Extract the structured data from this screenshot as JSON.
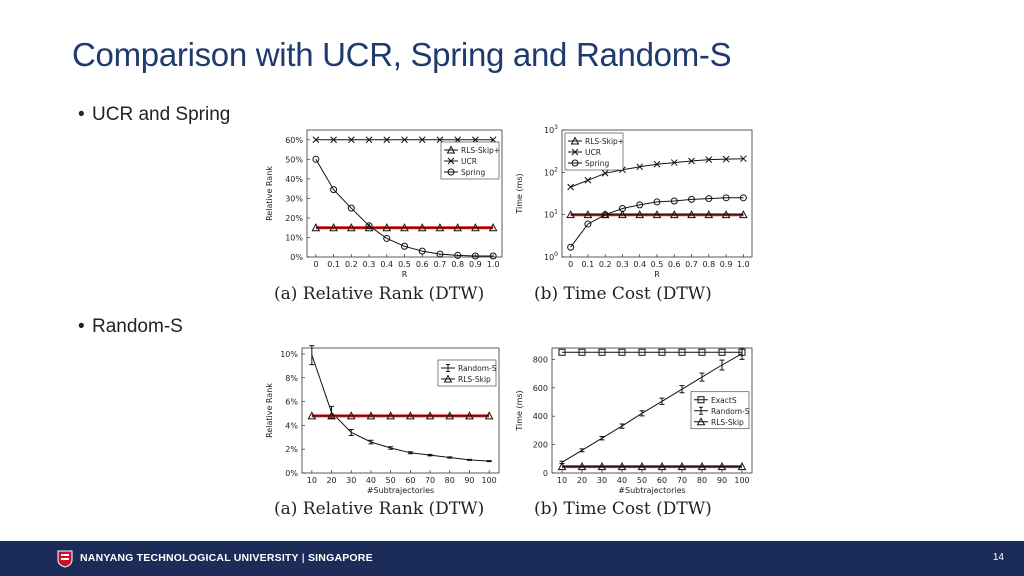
{
  "slide": {
    "title": "Comparison with UCR, Spring and Random-S",
    "bullets": [
      "UCR and Spring",
      "Random-S"
    ],
    "page_number": "14"
  },
  "footer": {
    "university": "NANYANG TECHNOLOGICAL UNIVERSITY",
    "separator": "|",
    "location": "SINGAPORE"
  },
  "colors": {
    "title": "#1f3a6e",
    "footer_bg": "#1c2c59",
    "highlight_line": "#e02020"
  },
  "chart_data": [
    {
      "type": "line",
      "caption": "(a) Relative Rank (DTW)",
      "xlabel": "R",
      "ylabel": "Relative Rank",
      "x": [
        0,
        0.1,
        0.2,
        0.3,
        0.4,
        0.5,
        0.6,
        0.7,
        0.8,
        0.9,
        1.0
      ],
      "xticks": [
        "0",
        "0.1",
        "0.2",
        "0.3",
        "0.4",
        "0.5",
        "0.6",
        "0.7",
        "0.8",
        "0.9",
        "1.0"
      ],
      "yticks": [
        "0%",
        "10%",
        "20%",
        "30%",
        "40%",
        "50%",
        "60%"
      ],
      "ylim": [
        0,
        65
      ],
      "xlim": [
        -0.05,
        1.05
      ],
      "legend_position": "top-right",
      "series": [
        {
          "name": "RLS-Skip+",
          "marker": "triangle",
          "highlight": true,
          "values": [
            15,
            15,
            15,
            15,
            15,
            15,
            15,
            15,
            15,
            15,
            15
          ]
        },
        {
          "name": "UCR",
          "marker": "x",
          "values": [
            60,
            60,
            60,
            60,
            60,
            60,
            60,
            60,
            60,
            60,
            60
          ]
        },
        {
          "name": "Spring",
          "marker": "circle",
          "values": [
            50,
            34.5,
            25,
            16,
            9.5,
            5.5,
            3,
            1.5,
            0.8,
            0.5,
            0.5
          ]
        }
      ]
    },
    {
      "type": "line",
      "caption": "(b) Time Cost (DTW)",
      "xlabel": "R",
      "ylabel": "Time (ms)",
      "yscale": "log",
      "x": [
        0,
        0.1,
        0.2,
        0.3,
        0.4,
        0.5,
        0.6,
        0.7,
        0.8,
        0.9,
        1.0
      ],
      "xticks": [
        "0",
        "0.1",
        "0.2",
        "0.3",
        "0.4",
        "0.5",
        "0.6",
        "0.7",
        "0.8",
        "0.9",
        "1.0"
      ],
      "yticks": [
        {
          "base": "10",
          "exp": "0",
          "v": 1
        },
        {
          "base": "10",
          "exp": "1",
          "v": 10
        },
        {
          "base": "10",
          "exp": "2",
          "v": 100
        },
        {
          "base": "10",
          "exp": "3",
          "v": 1000
        }
      ],
      "ylim": [
        1,
        1000
      ],
      "xlim": [
        -0.05,
        1.05
      ],
      "legend_position": "top-left",
      "series": [
        {
          "name": "RLS-Skip+",
          "marker": "triangle",
          "highlight": true,
          "values": [
            10,
            10,
            10,
            10,
            10,
            10,
            10,
            10,
            10,
            10,
            10
          ]
        },
        {
          "name": "UCR",
          "marker": "x",
          "values": [
            45,
            65,
            95,
            115,
            135,
            155,
            170,
            185,
            200,
            205,
            210
          ]
        },
        {
          "name": "Spring",
          "marker": "circle",
          "values": [
            1.7,
            6,
            10,
            14,
            17,
            20,
            21,
            23,
            24,
            25,
            25
          ]
        }
      ]
    },
    {
      "type": "line",
      "caption": "(a) Relative Rank (DTW)",
      "xlabel": "#Subtrajectories",
      "ylabel": "Relative Rank",
      "x": [
        10,
        20,
        30,
        40,
        50,
        60,
        70,
        80,
        90,
        100
      ],
      "xticks": [
        "10",
        "20",
        "30",
        "40",
        "50",
        "60",
        "70",
        "80",
        "90",
        "100"
      ],
      "yticks": [
        "0%",
        "2%",
        "4%",
        "6%",
        "8%",
        "10%"
      ],
      "ylim": [
        0,
        10.5
      ],
      "xlim": [
        5,
        105
      ],
      "legend_position": "top-right",
      "series": [
        {
          "name": "Random-S",
          "marker": "errorbar",
          "values": [
            9.9,
            5.1,
            3.4,
            2.6,
            2.1,
            1.7,
            1.5,
            1.3,
            1.1,
            1.0
          ],
          "errors": [
            0.8,
            0.5,
            0.25,
            0.15,
            0.1,
            0.08,
            0.06,
            0.05,
            0.04,
            0.04
          ]
        },
        {
          "name": "RLS-Skip",
          "marker": "triangle",
          "highlight": true,
          "values": [
            4.8,
            4.8,
            4.8,
            4.8,
            4.8,
            4.8,
            4.8,
            4.8,
            4.8,
            4.8
          ]
        }
      ]
    },
    {
      "type": "line",
      "caption": "(b) Time Cost (DTW)",
      "xlabel": "#Subtrajectories",
      "ylabel": "Time (ms)",
      "x": [
        10,
        20,
        30,
        40,
        50,
        60,
        70,
        80,
        90,
        100
      ],
      "xticks": [
        "10",
        "20",
        "30",
        "40",
        "50",
        "60",
        "70",
        "80",
        "90",
        "100"
      ],
      "yticks": [
        "0",
        "200",
        "400",
        "600",
        "800"
      ],
      "ylim": [
        0,
        880
      ],
      "xlim": [
        5,
        105
      ],
      "legend_position": "center-right",
      "series": [
        {
          "name": "ExactS",
          "marker": "square",
          "values": [
            850,
            850,
            850,
            850,
            850,
            850,
            850,
            850,
            850,
            850
          ]
        },
        {
          "name": "Random-S",
          "marker": "errorbar",
          "values": [
            75,
            160,
            245,
            330,
            420,
            505,
            590,
            675,
            760,
            840
          ],
          "errors": [
            8,
            10,
            12,
            15,
            18,
            22,
            25,
            28,
            35,
            40
          ]
        },
        {
          "name": "RLS-Skip",
          "marker": "triangle",
          "highlight": true,
          "values": [
            45,
            45,
            45,
            45,
            45,
            45,
            45,
            45,
            45,
            45
          ]
        }
      ]
    }
  ]
}
